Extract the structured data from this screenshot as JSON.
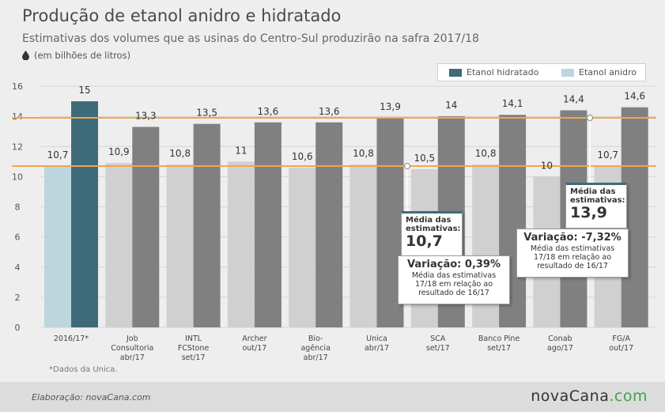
{
  "header": {
    "title": "Produção de etanol anidro e hidratado",
    "subtitle": "Estimativas dos volumes que as usinas do Centro-Sul produzirão na safra 2017/18",
    "unit": "(em bilhões de litros)",
    "unit_icon": "drop-icon"
  },
  "colors": {
    "hidratado": "#808080",
    "anidro": "#d0d0d0",
    "hidratado_highlight": "#3e6b7a",
    "anidro_highlight": "#bdd6de",
    "avg_line": "#f0a650"
  },
  "chart_data": {
    "type": "bar",
    "title": "Produção de etanol anidro e hidratado",
    "subtitle": "Estimativas dos volumes que as usinas do Centro-Sul produzirão na safra 2017/18",
    "ylabel": "(em bilhões de litros)",
    "ylim": [
      0,
      16
    ],
    "yticks": [
      "0",
      "2",
      "4",
      "6",
      "8",
      "10",
      "12",
      "14",
      "16"
    ],
    "grid": true,
    "legend_position": "top-right",
    "categories": [
      {
        "line1": "2016/17*",
        "line2": "",
        "line3": ""
      },
      {
        "line1": "Job",
        "line2": "Consultoria",
        "line3": "abr/17"
      },
      {
        "line1": "INTL",
        "line2": "FCStone",
        "line3": "set/17"
      },
      {
        "line1": "Archer",
        "line2": "out/17",
        "line3": ""
      },
      {
        "line1": "Bio-",
        "line2": "agência",
        "line3": "abr/17"
      },
      {
        "line1": "Unica",
        "line2": "abr/17",
        "line3": ""
      },
      {
        "line1": "SCA",
        "line2": "set/17",
        "line3": ""
      },
      {
        "line1": "Banco Pine",
        "line2": "set/17",
        "line3": ""
      },
      {
        "line1": "Conab",
        "line2": "ago/17",
        "line3": ""
      },
      {
        "line1": "FG/A",
        "line2": "out/17",
        "line3": ""
      }
    ],
    "series": [
      {
        "name": "Etanol anidro",
        "values": [
          10.7,
          10.9,
          10.8,
          11,
          10.6,
          10.8,
          10.5,
          10.8,
          10,
          10.7
        ],
        "labels": [
          "10,7",
          "10,9",
          "10,8",
          "11",
          "10,6",
          "10,8",
          "10,5",
          "10,8",
          "10",
          "10,7"
        ]
      },
      {
        "name": "Etanol hidratado",
        "values": [
          15,
          13.3,
          13.5,
          13.6,
          13.6,
          13.9,
          14,
          14.1,
          14.4,
          14.6
        ],
        "labels": [
          "15",
          "13,3",
          "13,5",
          "13,6",
          "13,6",
          "13,9",
          "14",
          "14,1",
          "14,4",
          "14,6"
        ]
      }
    ],
    "reference_lines": [
      {
        "name": "Média anidro",
        "value": 10.7
      },
      {
        "name": "Média hidratado",
        "value": 13.9
      }
    ]
  },
  "legend": {
    "hidratado": "Etanol hidratado",
    "anidro": "Etanol anidro"
  },
  "callouts": {
    "anidro": {
      "label_line1": "Média das",
      "label_line2": "estimativas:",
      "value": "10,7",
      "variation_title": "Variação: 0,39%",
      "variation_line1": "Média das estimativas",
      "variation_line2": "17/18 em relação ao",
      "variation_line3": "resultado de 16/17"
    },
    "hidratado": {
      "label_line1": "Média das",
      "label_line2": "estimativas:",
      "value": "13,9",
      "variation_title": "Variação: -7,32%",
      "variation_line1": "Média das estimativas",
      "variation_line2": "17/18 em relação ao",
      "variation_line3": "resultado de 16/17"
    }
  },
  "footnote": "*Dados da Unica.",
  "footer": {
    "credit": "Elaboração: novaCana.com",
    "brand_main": "novaCana",
    "brand_suffix": ".com"
  }
}
